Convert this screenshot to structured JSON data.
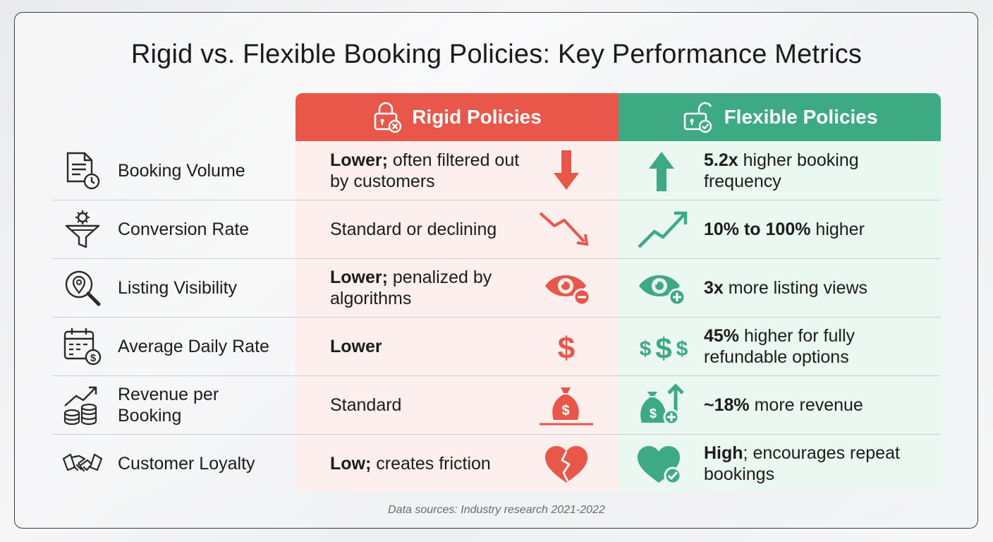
{
  "title": "Rigid vs. Flexible Booking Policies: Key Performance Metrics",
  "columns": {
    "rigid": {
      "label": "Rigid Policies",
      "color": "#e8574a"
    },
    "flexible": {
      "label": "Flexible Policies",
      "color": "#3eaa84"
    }
  },
  "rows": [
    {
      "metric": "Booking Volume",
      "rigid_bold": "Lower;",
      "rigid_rest": " often filtered out by customers",
      "flex_bold": "5.2x",
      "flex_rest": " higher booking frequency"
    },
    {
      "metric": "Conversion Rate",
      "rigid_bold": "",
      "rigid_rest": "Standard or declining",
      "flex_bold": "10% to 100%",
      "flex_rest": " higher"
    },
    {
      "metric": "Listing Visibility",
      "rigid_bold": "Lower;",
      "rigid_rest": " penalized by algorithms",
      "flex_bold": "3x",
      "flex_rest": " more listing views"
    },
    {
      "metric": "Average Daily Rate",
      "rigid_bold": "Lower",
      "rigid_rest": "",
      "flex_bold": "45%",
      "flex_rest": " higher for fully refundable options"
    },
    {
      "metric": "Revenue per Booking",
      "rigid_bold": "",
      "rigid_rest": "Standard",
      "flex_bold": "~18%",
      "flex_rest": " more revenue"
    },
    {
      "metric": "Customer Loyalty",
      "rigid_bold": "Low;",
      "rigid_rest": " creates friction",
      "flex_bold": "High",
      "flex_rest": "; encourages repeat bookings"
    }
  ],
  "footer": "Data sources: Industry research 2021-2022"
}
